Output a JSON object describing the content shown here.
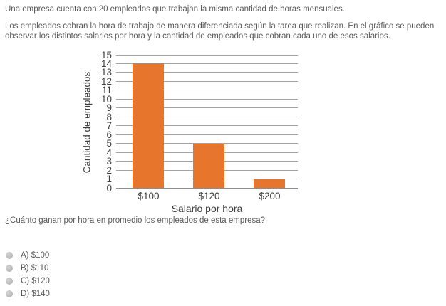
{
  "intro": {
    "p1": "Una empresa cuenta con 20 empleados que trabajan la misma cantidad de horas mensuales.",
    "p2": "Los empleados cobran la hora de trabajo de manera diferenciada según la tarea que realizan. En el gráfico se pueden observar los distintos salarios por hora y la cantidad de empleados que cobran cada uno de esos salarios."
  },
  "chart_data": {
    "type": "bar",
    "categories": [
      "$100",
      "$120",
      "$200"
    ],
    "values": [
      14,
      5,
      1
    ],
    "title": "",
    "xlabel": "Salario por hora",
    "ylabel": "Cantidad de empleados",
    "ylim": [
      0,
      15
    ],
    "ytick_step": 1,
    "grid": true,
    "legend": false,
    "bar_color": "#e7762c",
    "gridline_color": "#a3a3a3",
    "axis_color": "#8c8c8c",
    "text_color": "#3d3d3d"
  },
  "question": {
    "text": "¿Cuánto ganan por hora en promedio los empleados de esta empresa?",
    "options": [
      {
        "key": "A",
        "label": "A) $100",
        "selected": false
      },
      {
        "key": "B",
        "label": "B) $110",
        "selected": false
      },
      {
        "key": "C",
        "label": "C) $120",
        "selected": false
      },
      {
        "key": "D",
        "label": "D) $140",
        "selected": false
      }
    ]
  }
}
